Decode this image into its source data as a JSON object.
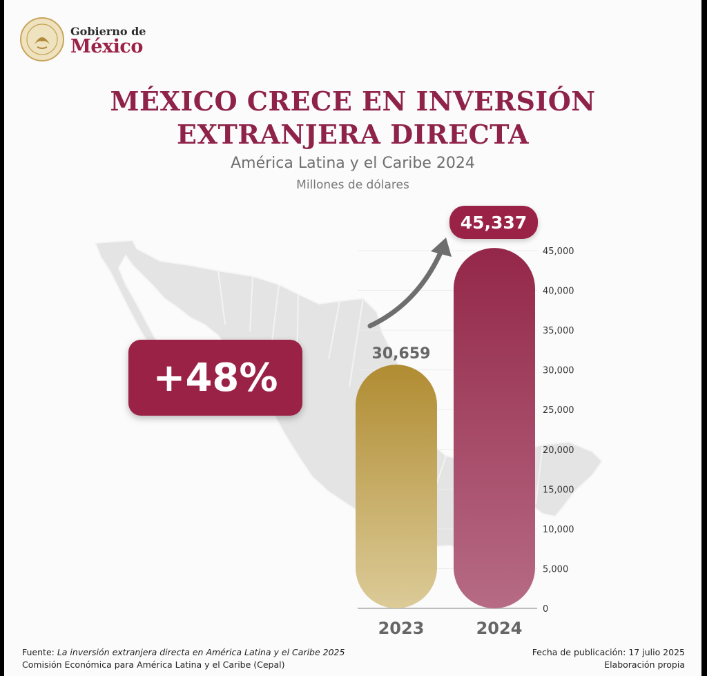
{
  "header": {
    "logo_line1": "Gobierno de",
    "logo_line2": "México"
  },
  "title_line1": "MÉXICO CRECE EN INVERSIÓN",
  "title_line2": "EXTRANJERA DIRECTA",
  "subtitle": "América Latina y el Caribe 2024",
  "unit": "Millones de dólares",
  "growth_badge": "+48%",
  "highlight_value": "45,337",
  "value_2023_label": "30,659",
  "footer": {
    "source_prefix": "Fuente: ",
    "source_title": "La inversión extranjera directa en América Latina y el Caribe 2025",
    "organization": "Comisión Económica para América Latina y el Caribe (Cepal)",
    "publication_date": "Fecha de publicación: 17 julio 2025",
    "elaboration": "Elaboración propia"
  },
  "colors": {
    "brand": "#9b2247",
    "gold": "#b8963a",
    "title": "#8e2249"
  },
  "chart_data": {
    "type": "bar",
    "categories": [
      "2023",
      "2024"
    ],
    "values": [
      30659,
      45337
    ],
    "ylim": [
      0,
      45000
    ],
    "yticks": [
      "0",
      "5,000",
      "10,000",
      "15,000",
      "20,000",
      "25,000",
      "30,000",
      "35,000",
      "40,000",
      "45,000"
    ],
    "grid": true,
    "y_axis_side": "right"
  }
}
